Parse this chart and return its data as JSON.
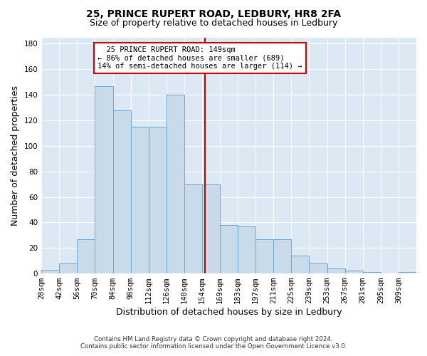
{
  "title1": "25, PRINCE RUPERT ROAD, LEDBURY, HR8 2FA",
  "title2": "Size of property relative to detached houses in Ledbury",
  "xlabel": "Distribution of detached houses by size in Ledbury",
  "ylabel": "Number of detached properties",
  "footnote1": "Contains HM Land Registry data © Crown copyright and database right 2024.",
  "footnote2": "Contains public sector information licensed under the Open Government Licence v3.0.",
  "categories": [
    "28sqm",
    "42sqm",
    "56sqm",
    "70sqm",
    "84sqm",
    "98sqm",
    "112sqm",
    "126sqm",
    "140sqm",
    "154sqm",
    "169sqm",
    "183sqm",
    "197sqm",
    "211sqm",
    "225sqm",
    "239sqm",
    "253sqm",
    "267sqm",
    "281sqm",
    "295sqm",
    "309sqm"
  ],
  "heights": [
    3,
    8,
    27,
    147,
    128,
    115,
    115,
    140,
    70,
    70,
    38,
    37,
    27,
    27,
    14,
    8,
    4,
    2,
    1,
    0,
    1
  ],
  "bar_color": "#c9daea",
  "bar_edge_color": "#6aaad4",
  "background_color": "#dce8f4",
  "vline_color": "#cc0000",
  "annotation_text": "  25 PRINCE RUPERT ROAD: 149sqm\n← 86% of detached houses are smaller (689)\n14% of semi-detached houses are larger (114) →",
  "annotation_box_color": "#cc0000",
  "ylim": [
    0,
    185
  ],
  "bin_width": 14,
  "property_size": 149,
  "title_fontsize": 10,
  "subtitle_fontsize": 9,
  "tick_fontsize": 7.5,
  "ylabel_fontsize": 9,
  "xlabel_fontsize": 9,
  "annotation_fontsize": 7.5
}
